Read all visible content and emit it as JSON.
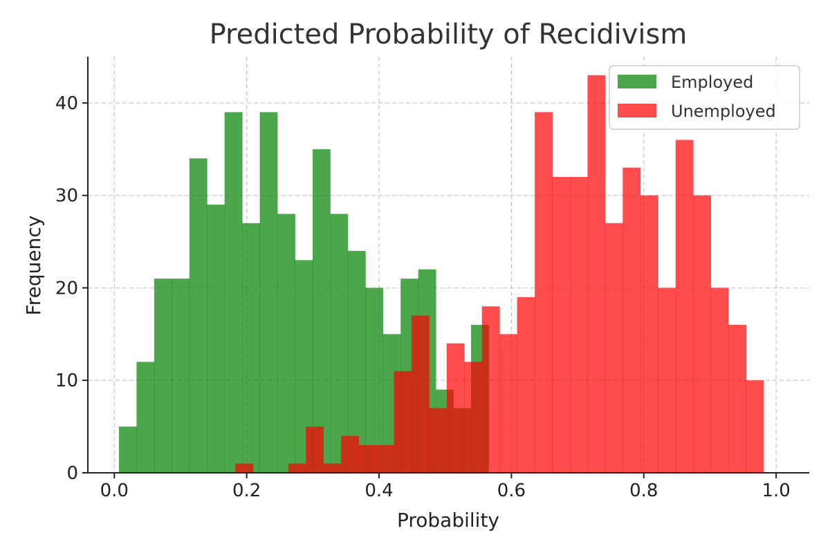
{
  "chart_data": {
    "type": "histogram",
    "title": "Predicted Probability of Recidivism",
    "xlabel": "Probability",
    "ylabel": "Frequency",
    "xlim": [
      -0.04,
      1.05
    ],
    "ylim": [
      0,
      45
    ],
    "xticks": [
      0.0,
      0.2,
      0.4,
      0.6,
      0.8,
      1.0
    ],
    "xtick_labels": [
      "0.0",
      "0.2",
      "0.4",
      "0.6",
      "0.8",
      "1.0"
    ],
    "yticks": [
      0,
      10,
      20,
      30,
      40
    ],
    "ytick_labels": [
      "0",
      "10",
      "20",
      "30",
      "40"
    ],
    "grid": true,
    "legend_position": "top-right",
    "series": [
      {
        "name": "Employed",
        "color": "#008000",
        "alpha": 0.7,
        "bin_start": 0.007,
        "bin_width": 0.0266,
        "counts": [
          5,
          12,
          21,
          21,
          34,
          29,
          39,
          27,
          39,
          28,
          23,
          35,
          28,
          24,
          20,
          15,
          21,
          22,
          9,
          7,
          16,
          0
        ]
      },
      {
        "name": "Unemployed",
        "color": "#ff0000",
        "alpha": 0.7,
        "bin_start": 0.183,
        "bin_width": 0.0266,
        "counts": [
          1,
          0,
          0,
          1,
          5,
          1,
          4,
          3,
          3,
          11,
          17,
          7,
          14,
          12,
          18,
          15,
          19,
          39,
          32,
          32,
          43,
          27,
          33,
          30,
          20,
          36,
          30,
          20,
          16,
          10
        ]
      }
    ]
  }
}
